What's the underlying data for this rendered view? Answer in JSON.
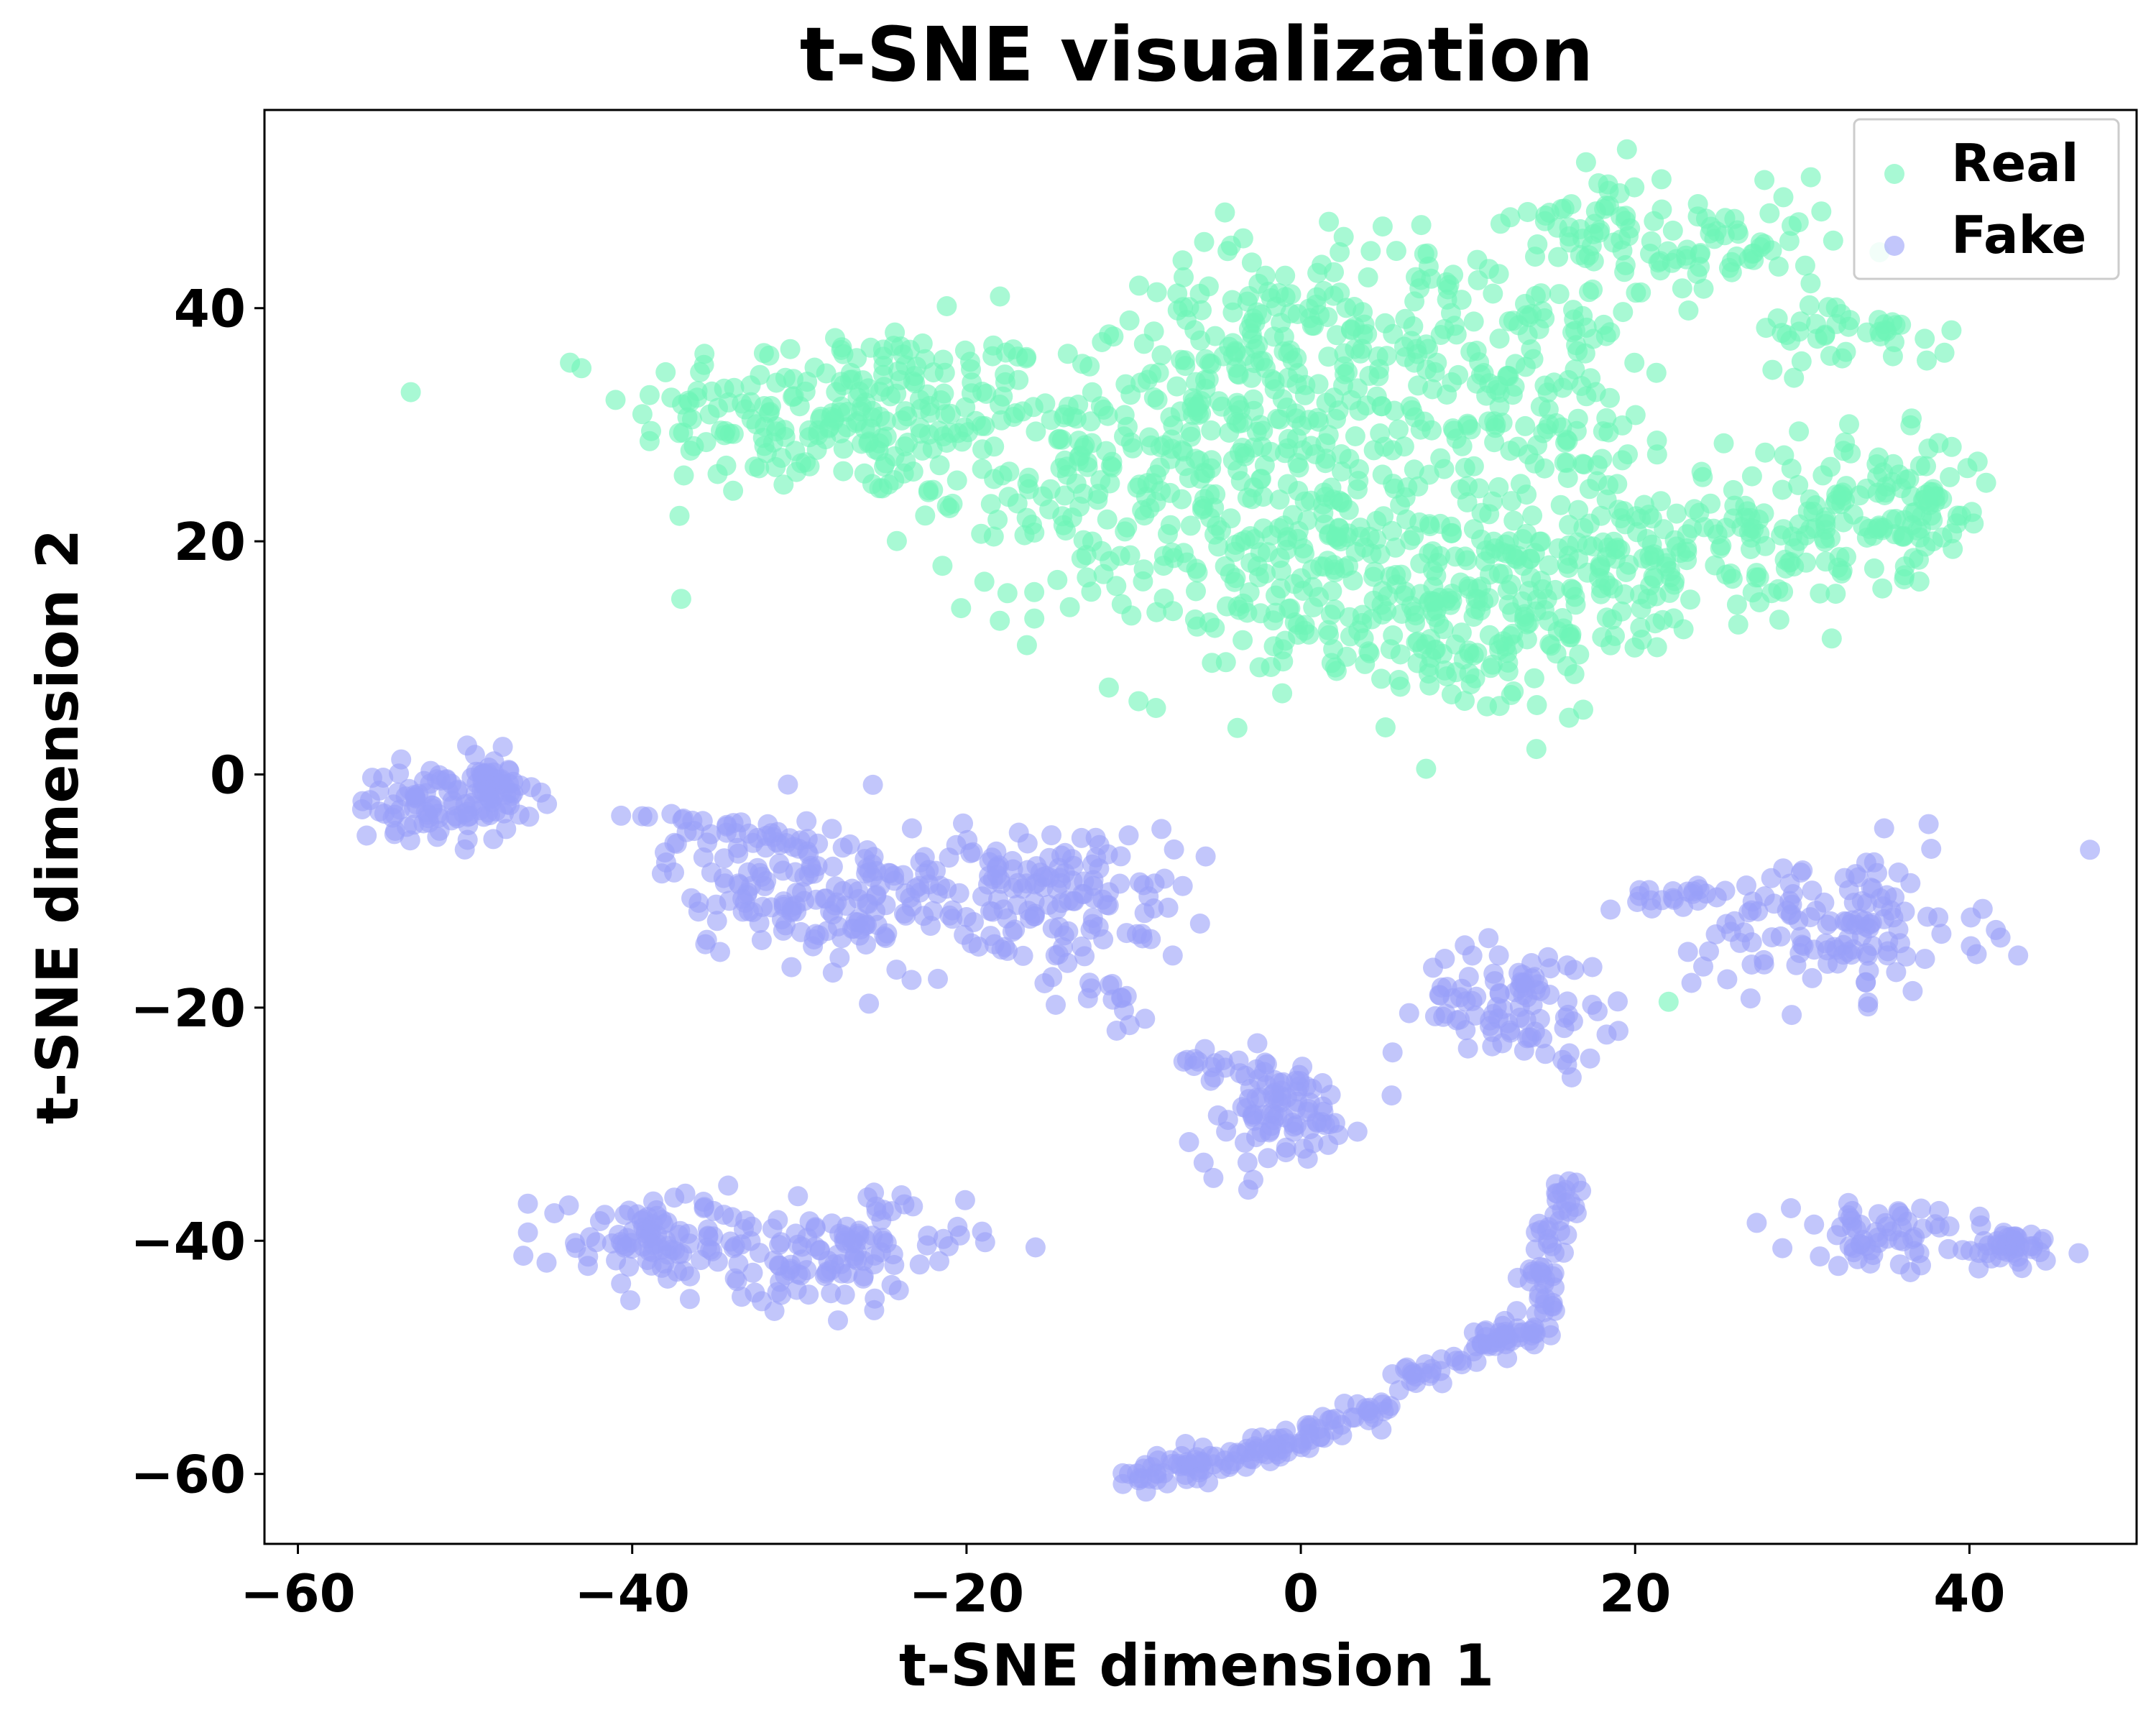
{
  "chart_data": {
    "type": "scatter",
    "title": "t-SNE visualization",
    "xlabel": "t-SNE dimension 1",
    "ylabel": "t-SNE dimension 2",
    "xlim": [
      -62,
      50
    ],
    "ylim": [
      -66,
      57
    ],
    "xticks": [
      -60,
      -40,
      -20,
      0,
      20,
      40
    ],
    "yticks": [
      -60,
      -40,
      -20,
      0,
      20,
      40
    ],
    "xtick_labels": [
      "−60",
      "−40",
      "−20",
      "0",
      "20",
      "40"
    ],
    "ytick_labels": [
      "−60",
      "−40",
      "−20",
      "0",
      "20",
      "40"
    ],
    "grid": false,
    "legend_position": "top-right",
    "point_alpha": 0.6,
    "series": [
      {
        "name": "Real",
        "color": "#6ef5b8",
        "clusters": [
          {
            "cx": -27,
            "cy": 31,
            "sx": 6.5,
            "sy": 3.8,
            "n": 230
          },
          {
            "cx": -13,
            "cy": 25,
            "sx": 4.5,
            "sy": 6.0,
            "n": 140
          },
          {
            "cx": -4,
            "cy": 33,
            "sx": 4.5,
            "sy": 6.0,
            "n": 150
          },
          {
            "cx": 4,
            "cy": 38,
            "sx": 4.5,
            "sy": 4.5,
            "n": 110
          },
          {
            "cx": 0,
            "cy": 20,
            "sx": 5.5,
            "sy": 6.5,
            "n": 200
          },
          {
            "cx": 9,
            "cy": 14,
            "sx": 5.5,
            "sy": 4.5,
            "n": 200
          },
          {
            "cx": 14,
            "cy": 33,
            "sx": 4.5,
            "sy": 5.0,
            "n": 130
          },
          {
            "cx": 19,
            "cy": 19,
            "sx": 3.5,
            "sy": 3.5,
            "n": 120
          },
          {
            "cx": 29,
            "cy": 21,
            "sx": 3.5,
            "sy": 3.5,
            "n": 90
          },
          {
            "cx": 36,
            "cy": 23,
            "sx": 2.8,
            "sy": 3.0,
            "n": 90
          },
          {
            "cx": 18,
            "cy": 47,
            "sx": 2.5,
            "sy": 2.5,
            "n": 60
          },
          {
            "cx": 26,
            "cy": 45,
            "sx": 3.0,
            "sy": 2.5,
            "n": 50
          },
          {
            "cx": 33,
            "cy": 38,
            "sx": 3.0,
            "sy": 1.5,
            "n": 40
          }
        ],
        "extra_points": [
          [
            -38,
            34.5
          ],
          [
            -18,
            41
          ],
          [
            22,
            -19.5
          ],
          [
            32,
            15.5
          ]
        ]
      },
      {
        "name": "Fake",
        "color": "#9aa0f8",
        "clusters": [
          {
            "cx": -51.5,
            "cy": -2.5,
            "sx": 2.5,
            "sy": 1.6,
            "n": 90
          },
          {
            "cx": -48.5,
            "cy": -0.5,
            "sx": 1.2,
            "sy": 1.2,
            "n": 40
          },
          {
            "cx": -31,
            "cy": -9.5,
            "sx": 3.5,
            "sy": 3.0,
            "n": 110
          },
          {
            "cx": -20.5,
            "cy": -10.5,
            "sx": 4.5,
            "sy": 3.5,
            "n": 120
          },
          {
            "cx": -13,
            "cy": -10.5,
            "sx": 3.0,
            "sy": 3.0,
            "n": 80
          },
          {
            "cx": -1.5,
            "cy": -29,
            "sx": 2.5,
            "sy": 2.5,
            "n": 90
          },
          {
            "cx": 13,
            "cy": -19.5,
            "sx": 2.8,
            "sy": 2.5,
            "n": 90
          },
          {
            "cx": 32,
            "cy": -13,
            "sx": 4.2,
            "sy": 3.0,
            "n": 130
          },
          {
            "cx": -38,
            "cy": -40,
            "sx": 3.8,
            "sy": 2.0,
            "n": 100
          },
          {
            "cx": -28,
            "cy": -41,
            "sx": 4.0,
            "sy": 2.4,
            "n": 110
          },
          {
            "cx": 35,
            "cy": -39.5,
            "sx": 2.8,
            "sy": 1.3,
            "n": 60
          },
          {
            "cx": 42.5,
            "cy": -40.5,
            "sx": 1.8,
            "sy": 1.0,
            "n": 40
          }
        ],
        "trails": [
          {
            "points": [
              [
                -10,
                -60
              ],
              [
                -5,
                -59
              ],
              [
                0,
                -57
              ],
              [
                5,
                -54
              ]
            ],
            "n": 120,
            "jitter": 0.7
          },
          {
            "points": [
              [
                6,
                -52
              ],
              [
                11,
                -49
              ],
              [
                14,
                -48
              ],
              [
                15,
                -40
              ],
              [
                16,
                -35
              ]
            ],
            "n": 120,
            "jitter": 0.6
          },
          {
            "points": [
              [
                -41,
                -3
              ],
              [
                -35,
                -5
              ],
              [
                -30,
                -6
              ]
            ],
            "n": 25,
            "jitter": 0.8
          },
          {
            "points": [
              [
                -12,
                -18
              ],
              [
                -10,
                -21
              ]
            ],
            "n": 12,
            "jitter": 0.6
          },
          {
            "points": [
              [
                -7,
                -24
              ],
              [
                -4,
                -26
              ]
            ],
            "n": 12,
            "jitter": 0.7
          },
          {
            "points": [
              [
                20,
                -11
              ],
              [
                25,
                -10
              ]
            ],
            "n": 18,
            "jitter": 0.7
          }
        ],
        "extra_points": [
          [
            19,
            -22
          ],
          [
            10,
            -23.5
          ],
          [
            21,
            -11.5
          ],
          [
            -28,
            -17
          ]
        ]
      }
    ]
  }
}
